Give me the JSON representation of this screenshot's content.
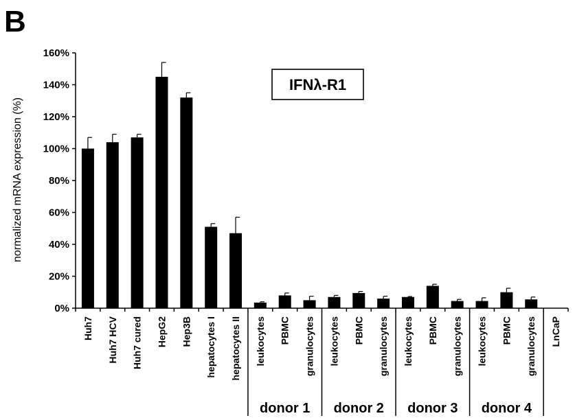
{
  "panel_label": "B",
  "chart_data": {
    "type": "bar",
    "title": "IFNλ-R1",
    "xlabel": "",
    "ylabel": "normalized mRNA expression (%)",
    "ylim": [
      0,
      160
    ],
    "yticks": [
      "0%",
      "20%",
      "40%",
      "60%",
      "80%",
      "100%",
      "120%",
      "140%",
      "160%"
    ],
    "grid": false,
    "categories": [
      "Huh7",
      "Huh7 HCV",
      "Huh7 cured",
      "HepG2",
      "Hep3B",
      "hepatocytes I",
      "hepatocytes II",
      "leukocytes",
      "PBMC",
      "granulocytes",
      "leukocytes",
      "PBMC",
      "granulocytes",
      "leukocytes",
      "PBMC",
      "granulocytes",
      "leukocytes",
      "PBMC",
      "granulocytes",
      "LnCaP"
    ],
    "values": [
      100,
      104,
      107,
      145,
      132,
      51,
      47,
      3.5,
      8,
      5,
      7,
      9.5,
      6,
      7,
      14,
      4.5,
      4.5,
      10,
      5.5,
      0
    ],
    "errors": [
      7,
      5,
      2,
      9,
      3,
      2,
      10,
      0.5,
      1.5,
      2.5,
      1,
      1,
      1.5,
      0.3,
      1,
      1,
      2,
      2.5,
      1.5,
      0
    ],
    "bar_color": "#000000",
    "groups": [
      {
        "label": "donor 1",
        "start": 7,
        "end": 9
      },
      {
        "label": "donor 2",
        "start": 10,
        "end": 12
      },
      {
        "label": "donor 3",
        "start": 13,
        "end": 15
      },
      {
        "label": "donor 4",
        "start": 16,
        "end": 18
      }
    ]
  }
}
